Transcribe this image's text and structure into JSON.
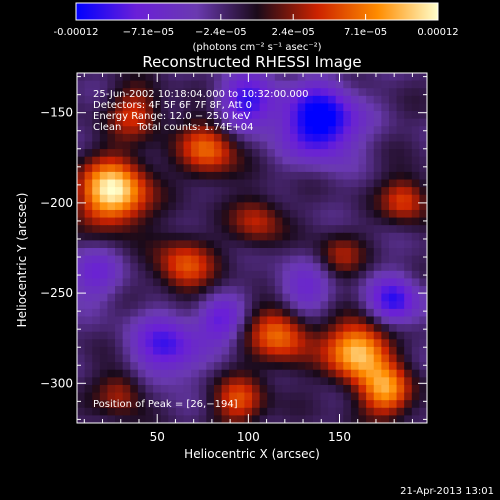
{
  "chart_data": {
    "type": "heatmap",
    "title": "Reconstructed RHESSI Image",
    "xlabel": "Heliocentric X (arcsec)",
    "ylabel": "Heliocentric Y (arcsec)",
    "xlim": [
      6,
      198
    ],
    "ylim": [
      -322,
      -128
    ],
    "x_ticks": [
      50,
      100,
      150
    ],
    "y_ticks": [
      -300,
      -250,
      -200,
      -150
    ],
    "colorbar": {
      "range": [
        -0.00012,
        0.00012
      ],
      "tick_labels": [
        "-0.00012",
        "−7.1e−05",
        "−2.4e−05",
        "2.4e−05",
        "7.1e−05",
        "0.00012"
      ],
      "unit_label": "(photons cm⁻² s⁻¹ asec⁻²)",
      "stops": [
        "#0000ff",
        "#6a1fd8",
        "#6a3ab0",
        "#1a0a1a",
        "#cc2200",
        "#ff8c00",
        "#ffffcc"
      ]
    },
    "info_lines": [
      "25-Jun-2002 10:18:04.000 to 10:32:00.000",
      "Detectors: 4F 5F 6F 7F 8F, Att 0",
      "Energy Range: 12.0 − 25.0 keV",
      "Clean     Total counts: 1.74E+04"
    ],
    "peak_label": "Position of Peak = [26,−194]",
    "blobs": [
      {
        "x": 26,
        "y": -194,
        "amp": 1.0,
        "s": 13
      },
      {
        "x": 78,
        "y": -170,
        "amp": 0.6,
        "s": 11
      },
      {
        "x": 38,
        "y": -150,
        "amp": 0.45,
        "s": 10
      },
      {
        "x": 65,
        "y": -235,
        "amp": 0.55,
        "s": 11
      },
      {
        "x": 105,
        "y": -210,
        "amp": 0.4,
        "s": 10
      },
      {
        "x": 118,
        "y": -272,
        "amp": 0.65,
        "s": 12
      },
      {
        "x": 160,
        "y": -282,
        "amp": 0.9,
        "s": 12
      },
      {
        "x": 176,
        "y": -305,
        "amp": 0.7,
        "s": 10
      },
      {
        "x": 186,
        "y": -198,
        "amp": 0.5,
        "s": 9
      },
      {
        "x": 150,
        "y": -230,
        "amp": 0.35,
        "s": 9
      },
      {
        "x": 95,
        "y": -310,
        "amp": 0.5,
        "s": 10
      },
      {
        "x": 30,
        "y": -305,
        "amp": 0.4,
        "s": 9
      },
      {
        "x": 55,
        "y": -280,
        "amp": -0.55,
        "s": 13
      },
      {
        "x": 140,
        "y": -155,
        "amp": -0.85,
        "s": 14
      },
      {
        "x": 100,
        "y": -145,
        "amp": -0.6,
        "s": 11
      },
      {
        "x": 130,
        "y": -250,
        "amp": -0.4,
        "s": 12
      },
      {
        "x": 180,
        "y": -255,
        "amp": -0.6,
        "s": 10
      },
      {
        "x": 15,
        "y": -240,
        "amp": -0.35,
        "s": 11
      },
      {
        "x": 85,
        "y": -265,
        "amp": -0.45,
        "s": 9
      }
    ]
  },
  "footer": {
    "timestamp": "21-Apr-2013 13:01"
  }
}
